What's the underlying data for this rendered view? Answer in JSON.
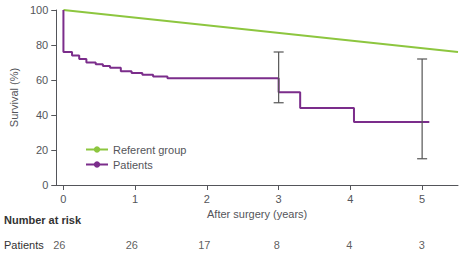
{
  "chart_data": {
    "type": "line",
    "xlabel": "After surgery (years)",
    "ylabel": "Survival (%)",
    "xlim": [
      -0.1,
      5.5
    ],
    "xticks": [
      0,
      1,
      2,
      3,
      4,
      5
    ],
    "ylim": [
      0,
      100
    ],
    "yticks": [
      0,
      20,
      40,
      60,
      80,
      100
    ],
    "grid": false,
    "legend": "lower left",
    "series": [
      {
        "name": "Referent group",
        "type": "line",
        "color": "#8dc63f",
        "x": [
          0,
          5.5
        ],
        "values": [
          100,
          76
        ]
      },
      {
        "name": "Patients",
        "type": "step",
        "color": "#7b2d8b",
        "x": [
          0,
          0,
          0.12,
          0.22,
          0.32,
          0.45,
          0.55,
          0.65,
          0.8,
          0.95,
          1.1,
          1.25,
          1.45,
          2.0,
          2.6,
          3.0,
          3.3,
          3.55,
          4.05,
          4.5,
          5.1
        ],
        "values": [
          100,
          76,
          74,
          72,
          70,
          69,
          68,
          67,
          65,
          64,
          63,
          62,
          61,
          61,
          61,
          53,
          44,
          44,
          36,
          36,
          36
        ]
      }
    ],
    "error_bars": {
      "color": "#555555",
      "x": [
        3.0,
        5.0
      ],
      "lower": [
        47,
        15
      ],
      "upper": [
        76,
        72
      ]
    },
    "number_at_risk": {
      "title": "Number at risk",
      "row_label": "Patients",
      "x": [
        0,
        1,
        2,
        3,
        4,
        5
      ],
      "values": [
        26,
        26,
        17,
        8,
        4,
        3
      ]
    }
  }
}
